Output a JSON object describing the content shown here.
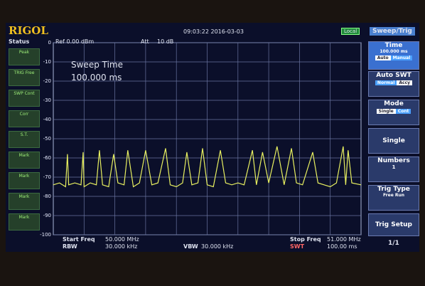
{
  "header": {
    "logo": "RIGOL",
    "datetime": "09:03:22 2016-03-03",
    "remote": "Local",
    "ref": "Ref 0.00 dBm",
    "att_label": "Att",
    "att_value": "10 dB"
  },
  "status": {
    "title": "Status",
    "items": [
      "Peak",
      "TRIG Free",
      "SWP Cont",
      "Corr",
      "S.T.",
      "Mark",
      "Mark",
      "Mark",
      "Mark"
    ]
  },
  "annotation": {
    "title": "Sweep Time",
    "value": "100.000 ms"
  },
  "footer": {
    "start_label": "Start Freq",
    "start_value": "50.000 MHz",
    "rbw_label": "RBW",
    "rbw_value": "30.000 kHz",
    "vbw_label": "VBW",
    "vbw_value": "30.000 kHz",
    "stop_label": "Stop Freq",
    "stop_value": "51.000 MHz",
    "swt_label": "SWT",
    "swt_value": "100.00 ms"
  },
  "menu": {
    "title": "Sweep/Trig",
    "time": {
      "label": "Time",
      "value": "100.000 ms",
      "options": [
        "Auto",
        "Manual"
      ]
    },
    "auto_swt": {
      "label": "Auto SWT",
      "options": [
        "Normal",
        "Accy"
      ]
    },
    "mode": {
      "label": "Mode",
      "options": [
        "Single",
        "Cont"
      ]
    },
    "single": "Single",
    "numbers": {
      "label": "Numbers",
      "value": "1"
    },
    "trig_type": {
      "label": "Trig Type",
      "value": "Free Run"
    },
    "trig_setup": "Trig Setup",
    "page": "1/1"
  },
  "chart_data": {
    "type": "line",
    "color": "#e8f060",
    "xlim": [
      50,
      51
    ],
    "ylim": [
      -100,
      0
    ],
    "yticks": [
      0,
      -10,
      -20,
      -30,
      -40,
      -50,
      -60,
      -70,
      -80,
      -90,
      -100
    ],
    "grid": true,
    "x": [
      50.0,
      50.02,
      50.04,
      50.046,
      50.05,
      50.07,
      50.09,
      50.097,
      50.1,
      50.12,
      50.14,
      50.15,
      50.16,
      50.18,
      50.196,
      50.21,
      50.23,
      50.242,
      50.26,
      50.28,
      50.3,
      50.32,
      50.34,
      50.365,
      50.38,
      50.4,
      50.42,
      50.434,
      50.45,
      50.47,
      50.485,
      50.5,
      50.52,
      50.543,
      50.56,
      50.58,
      50.6,
      50.62,
      50.647,
      50.66,
      50.68,
      50.7,
      50.727,
      50.75,
      50.774,
      50.79,
      50.81,
      50.843,
      50.86,
      50.88,
      50.9,
      50.92,
      50.942,
      50.95,
      50.958,
      50.97,
      51.0
    ],
    "values": [
      -74,
      -73,
      -75,
      -58,
      -74,
      -73,
      -74,
      -57,
      -75,
      -73,
      -74,
      -56,
      -74,
      -75,
      -58,
      -73,
      -74,
      -56,
      -75,
      -73,
      -56,
      -74,
      -73,
      -55,
      -74,
      -75,
      -73,
      -57,
      -74,
      -73,
      -55,
      -74,
      -75,
      -56,
      -73,
      -74,
      -73,
      -74,
      -56,
      -74,
      -57,
      -73,
      -54,
      -74,
      -55,
      -73,
      -74,
      -57,
      -73,
      -74,
      -75,
      -73,
      -54,
      -74,
      -56,
      -73,
      -74
    ]
  }
}
